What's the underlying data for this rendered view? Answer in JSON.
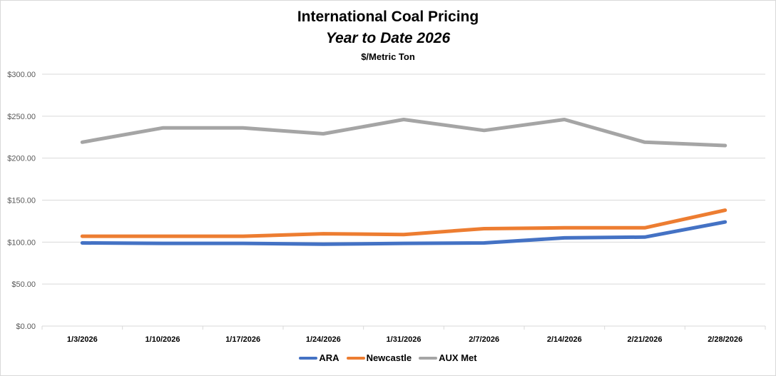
{
  "chart_data": {
    "type": "line",
    "title": "International Coal Pricing",
    "subtitle": "Year to Date 2026",
    "ylabel": "$/Metric Ton",
    "xlabel": "",
    "ylim": [
      0,
      300
    ],
    "yticks": [
      "$0.00",
      "$50.00",
      "$100.00",
      "$150.00",
      "$200.00",
      "$250.00",
      "$300.00"
    ],
    "ytick_values": [
      0,
      50,
      100,
      150,
      200,
      250,
      300
    ],
    "grid": true,
    "legend_position": "bottom",
    "categories": [
      "1/3/2026",
      "1/10/2026",
      "1/17/2026",
      "1/24/2026",
      "1/31/2026",
      "2/7/2026",
      "2/14/2026",
      "2/21/2026",
      "2/28/2026"
    ],
    "series": [
      {
        "name": "ARA",
        "color": "#4472c4",
        "values": [
          99,
          98.5,
          98.5,
          97.5,
          98.5,
          99,
          105,
          106,
          124
        ]
      },
      {
        "name": "Newcastle",
        "color": "#ed7d31",
        "values": [
          107,
          107,
          107,
          110,
          109,
          116,
          117,
          117,
          138
        ]
      },
      {
        "name": "AUX Met",
        "color": "#a5a5a5",
        "values": [
          219,
          236,
          236,
          229,
          246,
          233,
          246,
          219,
          215
        ]
      }
    ]
  }
}
